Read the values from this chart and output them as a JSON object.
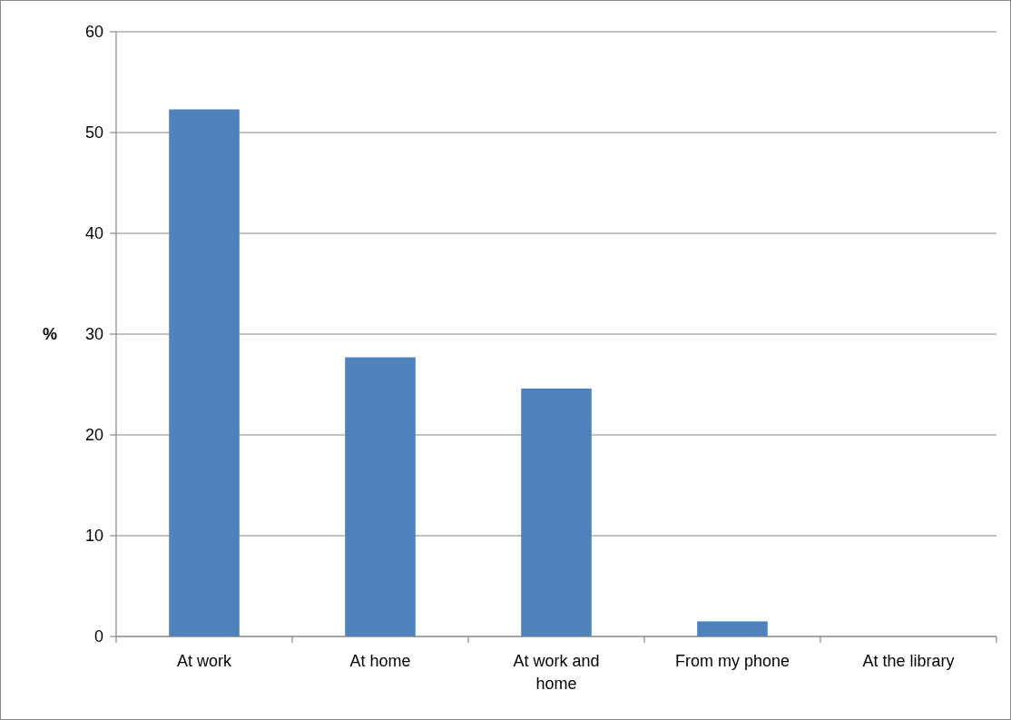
{
  "chart_data": {
    "type": "bar",
    "ylabel": "%",
    "categories": [
      "At work",
      "At home",
      "At work and home",
      "From my phone",
      "At the library"
    ],
    "values": [
      52.3,
      27.7,
      24.6,
      1.5,
      0
    ],
    "color": "#4f81bd",
    "ylim": [
      0,
      60
    ],
    "yticks": [
      0,
      10,
      20,
      30,
      40,
      50,
      60
    ],
    "grid": "y"
  }
}
